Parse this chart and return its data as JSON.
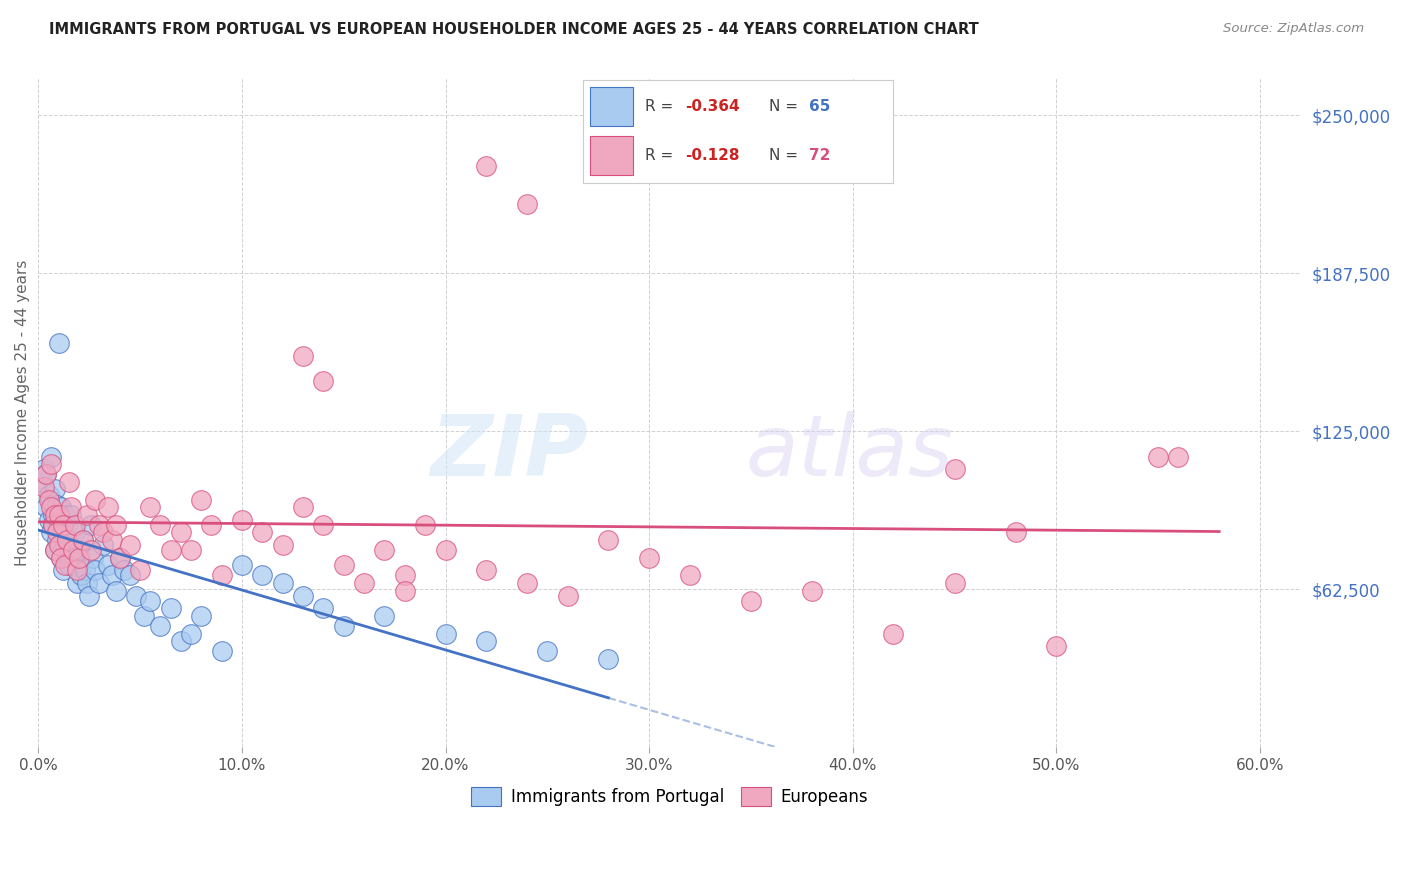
{
  "title": "IMMIGRANTS FROM PORTUGAL VS EUROPEAN HOUSEHOLDER INCOME AGES 25 - 44 YEARS CORRELATION CHART",
  "source": "Source: ZipAtlas.com",
  "ylabel": "Householder Income Ages 25 - 44 years",
  "ytick_values": [
    62500,
    125000,
    187500,
    250000
  ],
  "ymin": 0,
  "ymax": 265000,
  "xmin": 0.0,
  "xmax": 0.62,
  "legend_label1": "Immigrants from Portugal",
  "legend_label2": "Europeans",
  "R1": "-0.364",
  "N1": "65",
  "R2": "-0.128",
  "N2": "72",
  "color1": "#aacbf0",
  "color2": "#f0a8c0",
  "line_color1": "#4472c4",
  "line_color2": "#d94f7c",
  "blue_scatter_x": [
    0.002,
    0.003,
    0.004,
    0.004,
    0.005,
    0.005,
    0.006,
    0.006,
    0.007,
    0.007,
    0.008,
    0.008,
    0.009,
    0.009,
    0.01,
    0.01,
    0.011,
    0.011,
    0.012,
    0.012,
    0.013,
    0.013,
    0.014,
    0.015,
    0.016,
    0.017,
    0.018,
    0.019,
    0.02,
    0.021,
    0.022,
    0.023,
    0.024,
    0.025,
    0.026,
    0.027,
    0.028,
    0.03,
    0.032,
    0.034,
    0.036,
    0.038,
    0.04,
    0.042,
    0.045,
    0.048,
    0.052,
    0.055,
    0.06,
    0.065,
    0.07,
    0.075,
    0.08,
    0.09,
    0.1,
    0.11,
    0.12,
    0.13,
    0.14,
    0.15,
    0.17,
    0.2,
    0.22,
    0.25,
    0.28
  ],
  "blue_scatter_y": [
    105000,
    110000,
    95000,
    108000,
    100000,
    90000,
    115000,
    85000,
    88000,
    92000,
    102000,
    78000,
    96000,
    82000,
    160000,
    88000,
    95000,
    75000,
    85000,
    70000,
    92000,
    80000,
    88000,
    72000,
    92000,
    76000,
    85000,
    65000,
    78000,
    68000,
    82000,
    70000,
    65000,
    60000,
    88000,
    75000,
    70000,
    65000,
    80000,
    72000,
    68000,
    62000,
    75000,
    70000,
    68000,
    60000,
    52000,
    58000,
    48000,
    55000,
    42000,
    45000,
    52000,
    38000,
    72000,
    68000,
    65000,
    60000,
    55000,
    48000,
    52000,
    45000,
    42000,
    38000,
    35000
  ],
  "pink_scatter_x": [
    0.003,
    0.004,
    0.005,
    0.006,
    0.006,
    0.007,
    0.008,
    0.008,
    0.009,
    0.01,
    0.01,
    0.011,
    0.012,
    0.013,
    0.014,
    0.015,
    0.016,
    0.017,
    0.018,
    0.019,
    0.02,
    0.022,
    0.024,
    0.026,
    0.028,
    0.03,
    0.032,
    0.034,
    0.036,
    0.038,
    0.04,
    0.045,
    0.05,
    0.055,
    0.06,
    0.065,
    0.07,
    0.075,
    0.08,
    0.085,
    0.09,
    0.1,
    0.11,
    0.12,
    0.13,
    0.14,
    0.15,
    0.16,
    0.17,
    0.18,
    0.19,
    0.2,
    0.22,
    0.24,
    0.26,
    0.28,
    0.3,
    0.32,
    0.35,
    0.38,
    0.42,
    0.45,
    0.48,
    0.22,
    0.24,
    0.13,
    0.14,
    0.55,
    0.18,
    0.56,
    0.45,
    0.5
  ],
  "pink_scatter_y": [
    103000,
    108000,
    98000,
    95000,
    112000,
    88000,
    92000,
    78000,
    85000,
    80000,
    92000,
    75000,
    88000,
    72000,
    82000,
    105000,
    95000,
    78000,
    88000,
    70000,
    75000,
    82000,
    92000,
    78000,
    98000,
    88000,
    85000,
    95000,
    82000,
    88000,
    75000,
    80000,
    70000,
    95000,
    88000,
    78000,
    85000,
    78000,
    98000,
    88000,
    68000,
    90000,
    85000,
    80000,
    95000,
    88000,
    72000,
    65000,
    78000,
    68000,
    88000,
    78000,
    70000,
    65000,
    60000,
    82000,
    75000,
    68000,
    58000,
    62000,
    45000,
    110000,
    85000,
    230000,
    215000,
    155000,
    145000,
    115000,
    62000,
    115000,
    65000,
    40000
  ]
}
